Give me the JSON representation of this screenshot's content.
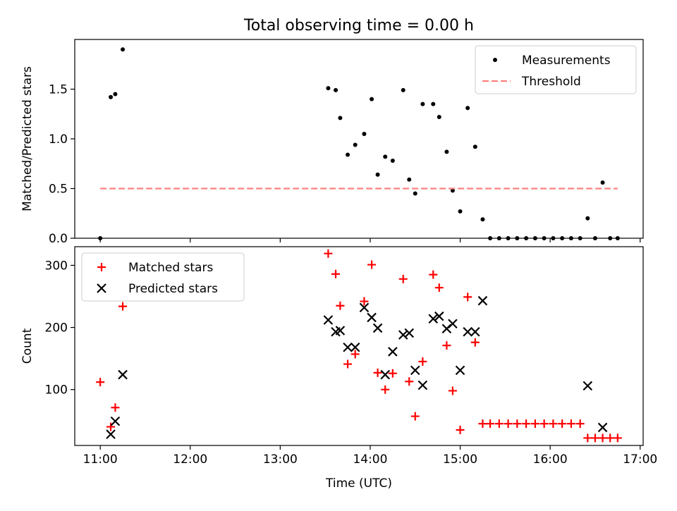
{
  "chart_data": [
    {
      "type": "scatter",
      "title": "Total observing time = 0.00 h",
      "xlabel": "",
      "ylabel": "Matched/Predicted stars",
      "xlim": [
        "10:43",
        "17:02"
      ],
      "ylim": [
        0,
        2.0
      ],
      "yticks": [
        0.0,
        0.5,
        1.0,
        1.5
      ],
      "ytick_labels": [
        "0.0",
        "0.5",
        "1.0",
        "1.5"
      ],
      "xticks": [
        "11:00",
        "12:00",
        "13:00",
        "14:00",
        "15:00",
        "16:00",
        "17:00"
      ],
      "legend": {
        "position": "top-right",
        "entries": [
          "Measurements",
          "Threshold"
        ]
      },
      "series": [
        {
          "name": "Measurements",
          "marker": "dot",
          "color": "#000000",
          "points": [
            [
              "11:00",
              0.0
            ],
            [
              "11:07",
              1.42
            ],
            [
              "11:10",
              1.45
            ],
            [
              "11:15",
              1.9
            ],
            [
              "13:32",
              1.51
            ],
            [
              "13:37",
              1.49
            ],
            [
              "13:40",
              1.21
            ],
            [
              "13:45",
              0.84
            ],
            [
              "13:50",
              0.94
            ],
            [
              "13:56",
              1.05
            ],
            [
              "14:01",
              1.4
            ],
            [
              "14:05",
              0.64
            ],
            [
              "14:10",
              0.82
            ],
            [
              "14:15",
              0.78
            ],
            [
              "14:22",
              1.49
            ],
            [
              "14:26",
              0.59
            ],
            [
              "14:30",
              0.45
            ],
            [
              "14:35",
              1.35
            ],
            [
              "14:42",
              1.35
            ],
            [
              "14:46",
              1.22
            ],
            [
              "14:51",
              0.87
            ],
            [
              "14:55",
              0.48
            ],
            [
              "15:00",
              0.27
            ],
            [
              "15:05",
              1.31
            ],
            [
              "15:10",
              0.92
            ],
            [
              "15:15",
              0.19
            ],
            [
              "15:20",
              0.0
            ],
            [
              "15:26",
              0.0
            ],
            [
              "15:32",
              0.0
            ],
            [
              "15:38",
              0.0
            ],
            [
              "15:44",
              0.0
            ],
            [
              "15:50",
              0.0
            ],
            [
              "15:56",
              0.0
            ],
            [
              "16:02",
              0.0
            ],
            [
              "16:08",
              0.0
            ],
            [
              "16:14",
              0.0
            ],
            [
              "16:20",
              0.0
            ],
            [
              "16:25",
              0.2
            ],
            [
              "16:30",
              0.0
            ],
            [
              "16:35",
              0.56
            ],
            [
              "16:40",
              0.0
            ],
            [
              "16:45",
              0.0
            ]
          ]
        },
        {
          "name": "Threshold",
          "line": "dashed",
          "color": "#ff8080",
          "points": [
            [
              "11:00",
              0.5
            ],
            [
              "16:45",
              0.5
            ]
          ]
        }
      ]
    },
    {
      "type": "scatter",
      "title": "",
      "xlabel": "Time (UTC)",
      "ylabel": "Count",
      "xlim": [
        "10:43",
        "17:02"
      ],
      "ylim": [
        10,
        330
      ],
      "yticks": [
        100,
        200,
        300
      ],
      "ytick_labels": [
        "100",
        "200",
        "300"
      ],
      "xticks": [
        "11:00",
        "12:00",
        "13:00",
        "14:00",
        "15:00",
        "16:00",
        "17:00"
      ],
      "xtick_labels": [
        "11:00",
        "12:00",
        "13:00",
        "14:00",
        "15:00",
        "16:00",
        "17:00"
      ],
      "legend": {
        "position": "top-left",
        "entries": [
          "Matched stars",
          "Predicted stars"
        ]
      },
      "series": [
        {
          "name": "Matched stars",
          "marker": "plus",
          "color": "#ff0000",
          "points": [
            [
              "11:00",
              112
            ],
            [
              "11:07",
              40
            ],
            [
              "11:10",
              71
            ],
            [
              "11:15",
              234
            ],
            [
              "13:32",
              319
            ],
            [
              "13:37",
              286
            ],
            [
              "13:40",
              235
            ],
            [
              "13:45",
              141
            ],
            [
              "13:50",
              157
            ],
            [
              "13:56",
              242
            ],
            [
              "14:01",
              301
            ],
            [
              "14:05",
              127
            ],
            [
              "14:10",
              100
            ],
            [
              "14:15",
              126
            ],
            [
              "14:22",
              278
            ],
            [
              "14:26",
              113
            ],
            [
              "14:30",
              57
            ],
            [
              "14:35",
              145
            ],
            [
              "14:42",
              285
            ],
            [
              "14:46",
              264
            ],
            [
              "14:51",
              171
            ],
            [
              "14:55",
              98
            ],
            [
              "15:00",
              35
            ],
            [
              "15:05",
              249
            ],
            [
              "15:10",
              176
            ],
            [
              "15:15",
              45
            ],
            [
              "15:20",
              45
            ],
            [
              "15:26",
              45
            ],
            [
              "15:32",
              45
            ],
            [
              "15:38",
              45
            ],
            [
              "15:44",
              45
            ],
            [
              "15:50",
              45
            ],
            [
              "15:56",
              45
            ],
            [
              "16:02",
              45
            ],
            [
              "16:08",
              45
            ],
            [
              "16:14",
              45
            ],
            [
              "16:20",
              45
            ],
            [
              "16:25",
              22
            ],
            [
              "16:30",
              22
            ],
            [
              "16:35",
              22
            ],
            [
              "16:40",
              22
            ],
            [
              "16:45",
              22
            ]
          ]
        },
        {
          "name": "Predicted stars",
          "marker": "x",
          "color": "#000000",
          "points": [
            [
              "11:07",
              28
            ],
            [
              "11:10",
              49
            ],
            [
              "11:15",
              124
            ],
            [
              "13:32",
              212
            ],
            [
              "13:37",
              193
            ],
            [
              "13:40",
              195
            ],
            [
              "13:45",
              168
            ],
            [
              "13:50",
              168
            ],
            [
              "13:56",
              232
            ],
            [
              "14:01",
              216
            ],
            [
              "14:05",
              199
            ],
            [
              "14:10",
              124
            ],
            [
              "14:15",
              161
            ],
            [
              "14:22",
              188
            ],
            [
              "14:26",
              191
            ],
            [
              "14:30",
              131
            ],
            [
              "14:35",
              107
            ],
            [
              "14:42",
              214
            ],
            [
              "14:46",
              218
            ],
            [
              "14:51",
              198
            ],
            [
              "14:55",
              206
            ],
            [
              "15:00",
              131
            ],
            [
              "15:05",
              193
            ],
            [
              "15:10",
              193
            ],
            [
              "15:15",
              243
            ],
            [
              "16:25",
              106
            ],
            [
              "16:35",
              39
            ]
          ]
        }
      ]
    }
  ]
}
